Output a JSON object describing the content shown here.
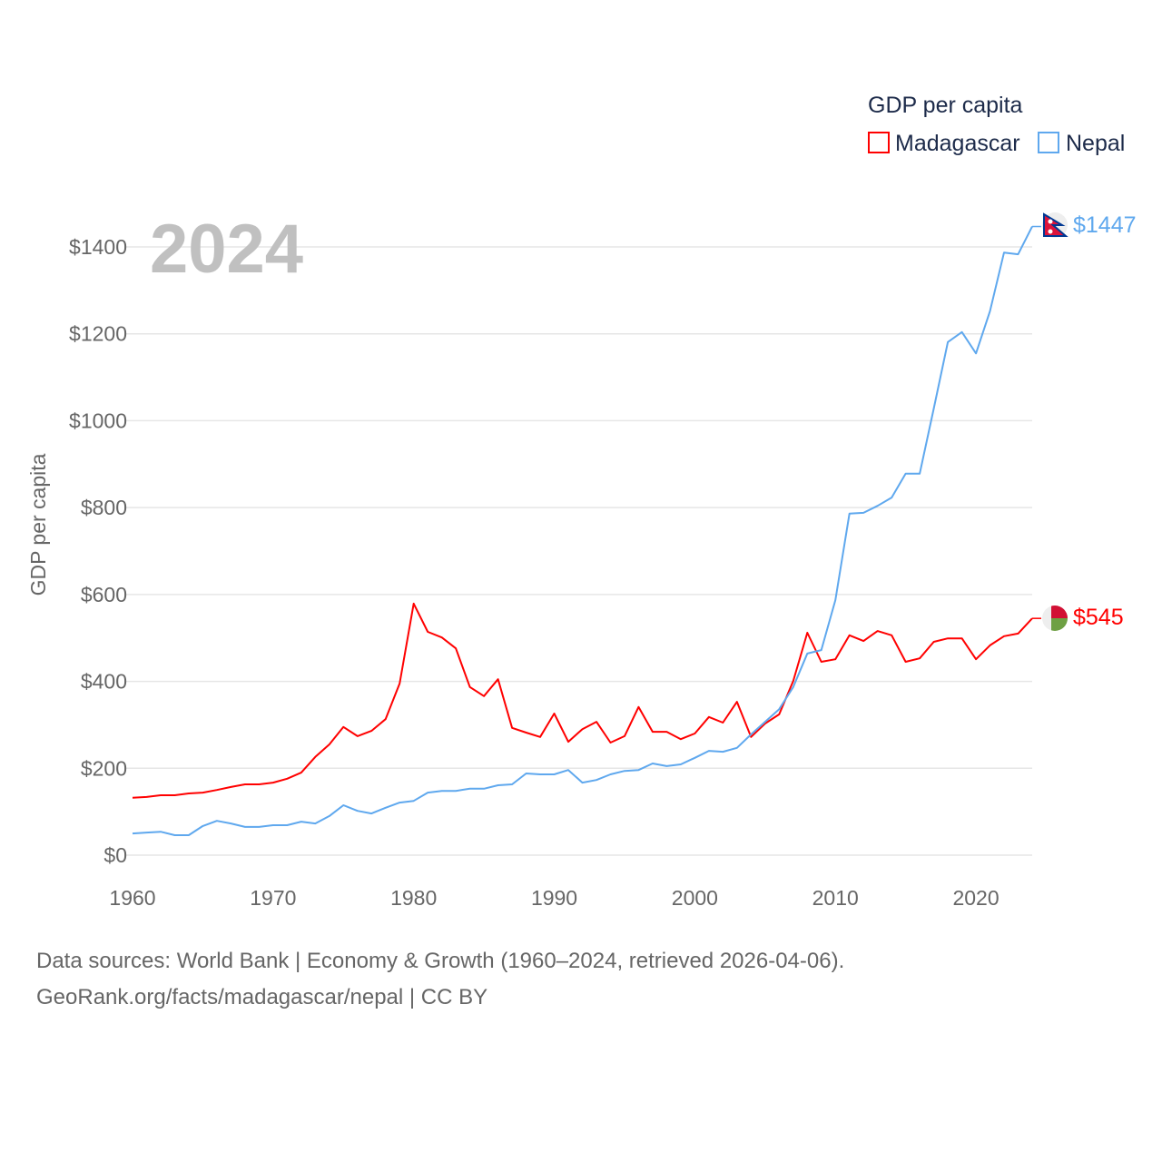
{
  "chart_data": {
    "type": "line",
    "title": "GDP per capita",
    "ylabel": "GDP per capita",
    "xlabel": "",
    "year_label": "2024",
    "xlim": [
      1960,
      2024
    ],
    "ylim": [
      0,
      1400
    ],
    "x_ticks": [
      1960,
      1970,
      1980,
      1990,
      2000,
      2010,
      2020
    ],
    "y_ticks": [
      0,
      200,
      400,
      600,
      800,
      1000,
      1200,
      1400
    ],
    "y_tick_labels": [
      "$0",
      "$200",
      "$400",
      "$600",
      "$800",
      "$1000",
      "$1200",
      "$1400"
    ],
    "grid": true,
    "legend_position": "top-right",
    "x": [
      1960,
      1961,
      1962,
      1963,
      1964,
      1965,
      1966,
      1967,
      1968,
      1969,
      1970,
      1971,
      1972,
      1973,
      1974,
      1975,
      1976,
      1977,
      1978,
      1979,
      1980,
      1981,
      1982,
      1983,
      1984,
      1985,
      1986,
      1987,
      1988,
      1989,
      1990,
      1991,
      1992,
      1993,
      1994,
      1995,
      1996,
      1997,
      1998,
      1999,
      2000,
      2001,
      2002,
      2003,
      2004,
      2005,
      2006,
      2007,
      2008,
      2009,
      2010,
      2011,
      2012,
      2013,
      2014,
      2015,
      2016,
      2017,
      2018,
      2019,
      2020,
      2021,
      2022,
      2023,
      2024
    ],
    "series": [
      {
        "name": "Madagascar",
        "color": "#ff0000",
        "end_label": "$545",
        "values": [
          132,
          134,
          138,
          138,
          142,
          144,
          150,
          157,
          163,
          163,
          167,
          176,
          190,
          226,
          255,
          295,
          274,
          286,
          313,
          395,
          579,
          514,
          501,
          476,
          387,
          366,
          405,
          293,
          282,
          272,
          326,
          261,
          290,
          307,
          259,
          274,
          341,
          284,
          284,
          267,
          280,
          318,
          305,
          353,
          272,
          303,
          324,
          401,
          512,
          445,
          451,
          506,
          493,
          516,
          506,
          445,
          453,
          491,
          499,
          499,
          451,
          483,
          504,
          510,
          545
        ]
      },
      {
        "name": "Nepal",
        "color": "#5fa8ee",
        "end_label": "$1447",
        "values": [
          50,
          52,
          54,
          46,
          46,
          67,
          79,
          73,
          65,
          65,
          69,
          69,
          77,
          73,
          90,
          115,
          102,
          96,
          109,
          121,
          125,
          144,
          148,
          148,
          153,
          153,
          161,
          163,
          188,
          186,
          186,
          196,
          167,
          173,
          186,
          194,
          196,
          211,
          205,
          209,
          224,
          240,
          238,
          247,
          278,
          307,
          336,
          387,
          464,
          472,
          587,
          786,
          788,
          804,
          823,
          878,
          878,
          1028,
          1181,
          1204,
          1155,
          1252,
          1387,
          1383,
          1447
        ]
      }
    ]
  },
  "footer": {
    "line1": "Data sources: World Bank | Economy & Growth (1960–2024, retrieved 2026-04-06).",
    "line2": "GeoRank.org/facts/madagascar/nepal | CC BY"
  }
}
